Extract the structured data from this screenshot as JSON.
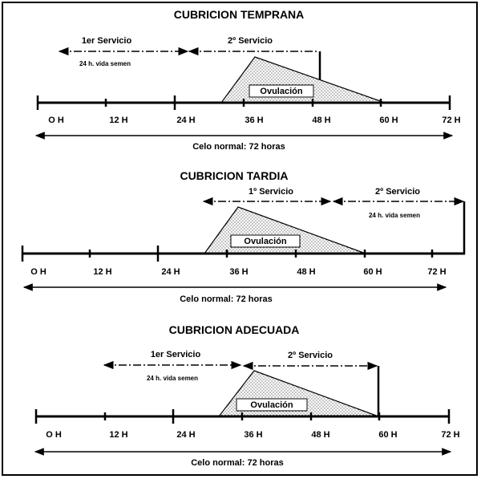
{
  "ovulation_label": "Ovulación",
  "sections": [
    {
      "title": "CUBRICION TEMPRANA",
      "first_service": "1er Servicio",
      "second_service": "2º Servicio",
      "semen_note": "24 h. vida semen",
      "ticks": [
        "O H",
        "12 H",
        "24 H",
        "36 H",
        "48 H",
        "60 H",
        "72 H"
      ],
      "celo": "Celo normal: 72 horas"
    },
    {
      "title": "CUBRICION TARDIA",
      "first_service": "1º Servicio",
      "second_service": "2º Servicio",
      "semen_note": "24 h. vida semen",
      "ticks": [
        "O H",
        "12 H",
        "24 H",
        "36 H",
        "48 H",
        "60 H",
        "72 H"
      ],
      "celo": "Celo normal: 72 horas"
    },
    {
      "title": "CUBRICION ADECUADA",
      "first_service": "1er Servicio",
      "second_service": "2º Servicio",
      "semen_note": "24 h. vida semen",
      "ticks": [
        "O H",
        "12 H",
        "24 H",
        "36 H",
        "48 H",
        "60 H",
        "72 H"
      ],
      "celo": "Celo normal: 72 horas"
    }
  ]
}
